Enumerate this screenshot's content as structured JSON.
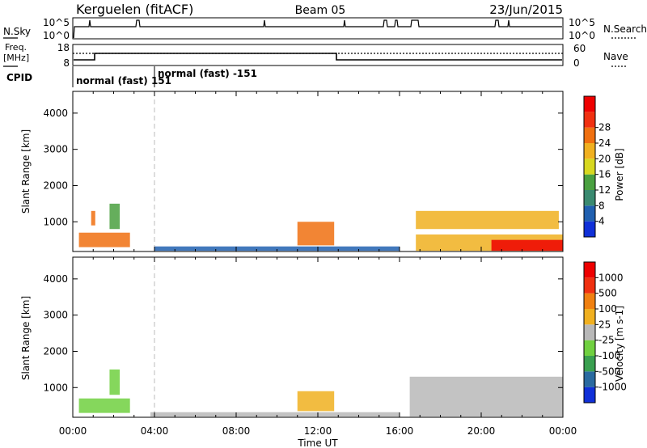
{
  "header": {
    "station": "Kerguelen (fitACF)",
    "beam": "Beam 05",
    "date": "23/Jun/2015"
  },
  "nsky_panel": {
    "left_label": "N.Sky",
    "left_ticks": [
      "10^5",
      "10^0"
    ],
    "right_ticks": [
      "10^5",
      "10^0"
    ],
    "right_label": "N.Search"
  },
  "freq_panel": {
    "left_label_1": "Freq.",
    "left_label_2": "[MHz]",
    "left_ticks": [
      "18",
      "8"
    ],
    "right_ticks": [
      "60",
      "0"
    ],
    "right_label": "Nave"
  },
  "cpid": {
    "label": "CPID",
    "segments": [
      {
        "text": "normal (fast) 151",
        "start_hour": 0
      },
      {
        "text": "normal (fast) -151",
        "start_hour": 4
      }
    ]
  },
  "chart_data": [
    {
      "type": "heatmap",
      "panel": "power",
      "ylabel": "Slant Range [km]",
      "xlabel": "Time UT",
      "x_ticks": [
        "00:00",
        "04:00",
        "08:00",
        "12:00",
        "16:00",
        "20:00",
        "00:00"
      ],
      "y_ticks": [
        1000,
        2000,
        3000,
        4000
      ],
      "ylim": [
        180,
        4600
      ],
      "xlim_hours": [
        0,
        24
      ],
      "colorbar": {
        "label": "Power [dB]",
        "ticks": [
          "4",
          "8",
          "12",
          "16",
          "20",
          "24",
          "28"
        ],
        "colors": [
          "#1030d8",
          "#2060b0",
          "#3a8a70",
          "#4aa040",
          "#d8d820",
          "#f0b020",
          "#f07010",
          "#f03010",
          "#ee0000"
        ]
      },
      "regions": [
        {
          "t0": 0.3,
          "t1": 2.8,
          "r0": 300,
          "r1": 700,
          "level": 6
        },
        {
          "t0": 1.8,
          "t1": 2.3,
          "r0": 800,
          "r1": 1500,
          "level": 3
        },
        {
          "t0": 0.9,
          "t1": 1.1,
          "r0": 900,
          "r1": 1300,
          "level": 6
        },
        {
          "t0": 11.0,
          "t1": 12.8,
          "r0": 350,
          "r1": 1000,
          "level": 6
        },
        {
          "t0": 16.8,
          "t1": 23.8,
          "r0": 800,
          "r1": 1300,
          "level": 5
        },
        {
          "t0": 16.8,
          "t1": 24.0,
          "r0": 200,
          "r1": 650,
          "level": 5
        },
        {
          "t0": 20.5,
          "t1": 24.0,
          "r0": 200,
          "r1": 500,
          "level": 8
        },
        {
          "t0": 4.0,
          "t1": 16.0,
          "r0": 200,
          "r1": 320,
          "level": 1
        }
      ]
    },
    {
      "type": "heatmap",
      "panel": "velocity",
      "ylabel": "Slant Range [km]",
      "xlabel": "Time UT",
      "x_ticks": [
        "00:00",
        "04:00",
        "08:00",
        "12:00",
        "16:00",
        "20:00",
        "00:00"
      ],
      "y_ticks": [
        1000,
        2000,
        3000,
        4000
      ],
      "ylim": [
        180,
        4600
      ],
      "xlim_hours": [
        0,
        24
      ],
      "colorbar": {
        "label": "Velocity [m s-1]",
        "ticks": [
          "1000",
          "500",
          "100",
          "25",
          "-25",
          "-100",
          "-500",
          "-1000"
        ],
        "colors": [
          "#1030d8",
          "#2a6aa0",
          "#3aa050",
          "#70d040",
          "#b8b8b8",
          "#f0b020",
          "#f08010",
          "#f03010",
          "#ee0000"
        ]
      },
      "regions": [
        {
          "t0": 0.3,
          "t1": 2.8,
          "r0": 300,
          "r1": 700,
          "level": 3
        },
        {
          "t0": 1.8,
          "t1": 2.3,
          "r0": 800,
          "r1": 1500,
          "level": 3
        },
        {
          "t0": 11.0,
          "t1": 12.8,
          "r0": 350,
          "r1": 900,
          "level": 5
        },
        {
          "t0": 16.5,
          "t1": 24.0,
          "r0": 200,
          "r1": 1300,
          "level": 4
        },
        {
          "t0": 3.8,
          "t1": 16.0,
          "r0": 200,
          "r1": 320,
          "level": 4
        }
      ]
    }
  ]
}
